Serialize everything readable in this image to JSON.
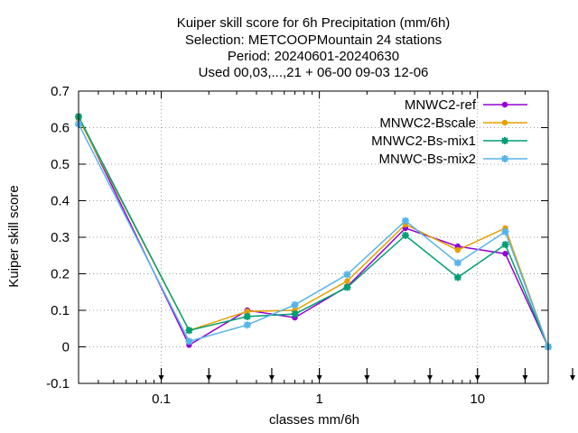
{
  "chart_data": {
    "type": "line",
    "title_lines": [
      "Kuiper skill score  for 6h Precipitation (mm/6h)",
      "Selection: METCOOPMountain     24 stations",
      "Period: 20240601-20240630",
      "Used 00,03,...,21 + 06-00 09-03 12-06"
    ],
    "xlabel": "classes mm/6h",
    "ylabel": "Kuiper skill score",
    "xscale": "log",
    "xlim": [
      0.03,
      28
    ],
    "ylim": [
      -0.1,
      0.7
    ],
    "x_ticks": [
      {
        "value": 0.1,
        "label": "0.1"
      },
      {
        "value": 1,
        "label": "1"
      },
      {
        "value": 10,
        "label": "10"
      }
    ],
    "y_ticks": [
      {
        "value": -0.1,
        "label": "-0.1"
      },
      {
        "value": 0,
        "label": "0"
      },
      {
        "value": 0.1,
        "label": "0.1"
      },
      {
        "value": 0.2,
        "label": "0.2"
      },
      {
        "value": 0.3,
        "label": "0.3"
      },
      {
        "value": 0.4,
        "label": "0.4"
      },
      {
        "value": 0.5,
        "label": "0.5"
      },
      {
        "value": 0.6,
        "label": "0.6"
      },
      {
        "value": 0.7,
        "label": "0.7"
      }
    ],
    "grid": true,
    "legend_position": "top-right",
    "arrow_markers_x": [
      0.1,
      0.2,
      0.5,
      1,
      2,
      5,
      10,
      20,
      50
    ],
    "x": [
      0.03,
      0.15,
      0.35,
      0.7,
      1.5,
      3.5,
      7.5,
      15,
      28
    ],
    "series": [
      {
        "name": "MNWC2-ref",
        "color": "#9400d3",
        "marker": "circle",
        "values": [
          0.63,
          0.005,
          0.1,
          0.08,
          0.165,
          0.325,
          0.275,
          0.255,
          0.0
        ]
      },
      {
        "name": "MNWC2-Bscale",
        "color": "#e69f00",
        "marker": "circle",
        "values": [
          0.625,
          0.045,
          0.097,
          0.1,
          0.18,
          0.335,
          0.265,
          0.325,
          0.0
        ]
      },
      {
        "name": "MNWC2-Bs-mix1",
        "color": "#009e73",
        "marker": "star",
        "values": [
          0.63,
          0.045,
          0.083,
          0.09,
          0.163,
          0.305,
          0.19,
          0.28,
          0.0
        ]
      },
      {
        "name": "MNWC-Bs-mix2",
        "color": "#56b4e9",
        "marker": "star",
        "values": [
          0.61,
          0.015,
          0.06,
          0.115,
          0.198,
          0.345,
          0.23,
          0.315,
          0.0
        ]
      }
    ]
  }
}
